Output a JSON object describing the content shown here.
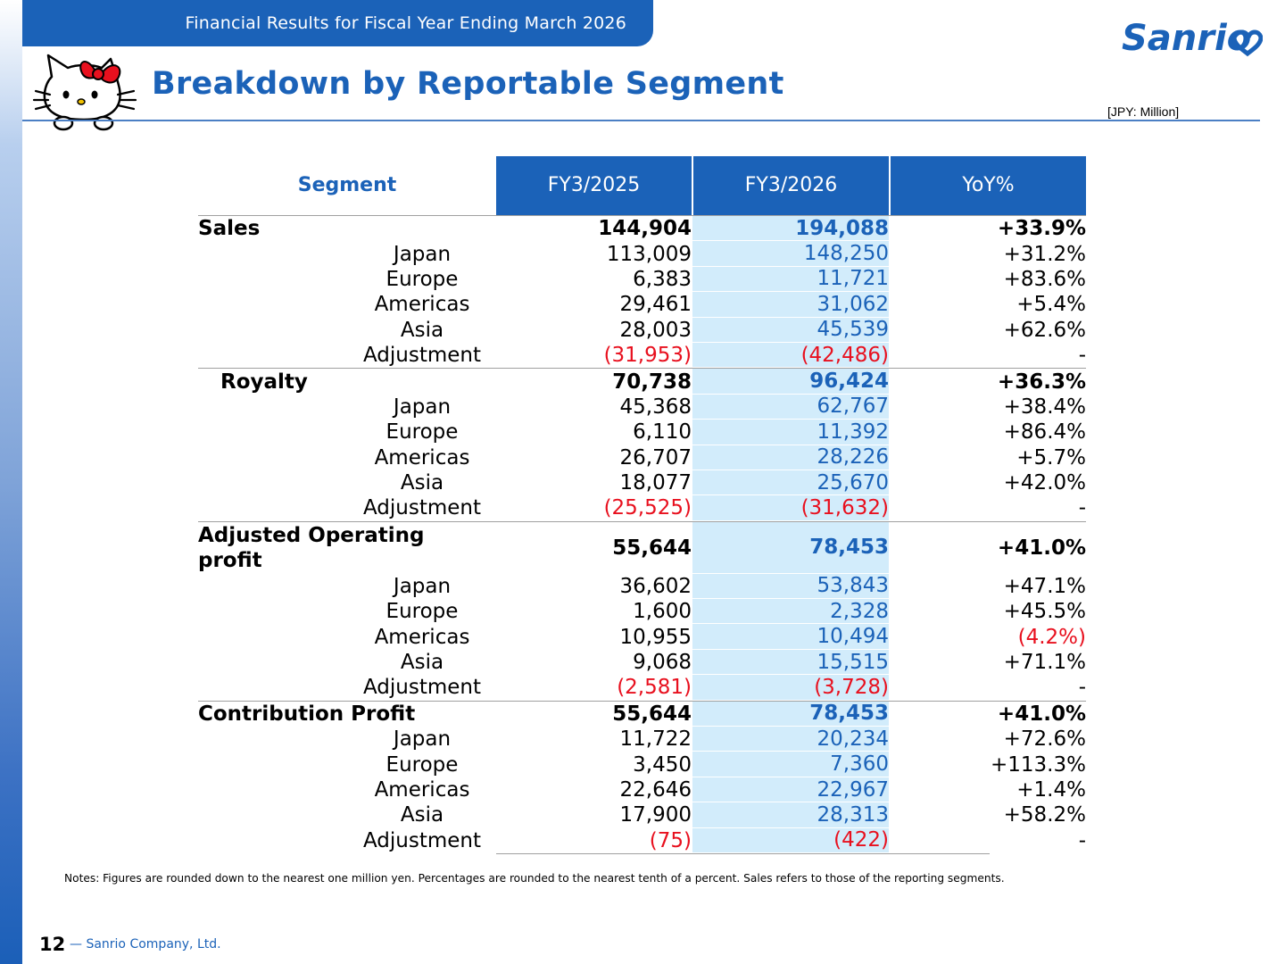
{
  "header": {
    "tab_title": "Financial Results for Fiscal Year Ending March 2026",
    "logo_text": "Sanrio",
    "page_title": "Breakdown by Reportable Segment",
    "unit": "[JPY: Million]"
  },
  "table": {
    "columns": [
      "Segment",
      "FY3/2025",
      "FY3/2026",
      "YoY%"
    ],
    "sections": [
      {
        "label": "Sales",
        "v1": "144,904",
        "v2": "194,088",
        "yoy": "+33.9%",
        "rows": [
          {
            "label": "Japan",
            "v1": "113,009",
            "v2": "148,250",
            "yoy": "+31.2%"
          },
          {
            "label": "Europe",
            "v1": "6,383",
            "v2": "11,721",
            "yoy": "+83.6%"
          },
          {
            "label": "Americas",
            "v1": "29,461",
            "v2": "31,062",
            "yoy": "+5.4%"
          },
          {
            "label": "Asia",
            "v1": "28,003",
            "v2": "45,539",
            "yoy": "+62.6%"
          },
          {
            "label": "Adjustment",
            "v1": "(31,953)",
            "v2": "(42,486)",
            "yoy": "-"
          }
        ]
      },
      {
        "label": "Royalty",
        "v1": "70,738",
        "v2": "96,424",
        "yoy": "+36.3%",
        "rows": [
          {
            "label": "Japan",
            "v1": "45,368",
            "v2": "62,767",
            "yoy": "+38.4%"
          },
          {
            "label": "Europe",
            "v1": "6,110",
            "v2": "11,392",
            "yoy": "+86.4%"
          },
          {
            "label": "Americas",
            "v1": "26,707",
            "v2": "28,226",
            "yoy": "+5.7%"
          },
          {
            "label": "Asia",
            "v1": "18,077",
            "v2": "25,670",
            "yoy": "+42.0%"
          },
          {
            "label": "Adjustment",
            "v1": "(25,525)",
            "v2": "(31,632)",
            "yoy": "-"
          }
        ]
      },
      {
        "label": "Adjusted Operating profit",
        "v1": "55,644",
        "v2": "78,453",
        "yoy": "+41.0%",
        "rows": [
          {
            "label": "Japan",
            "v1": "36,602",
            "v2": "53,843",
            "yoy": "+47.1%"
          },
          {
            "label": "Europe",
            "v1": "1,600",
            "v2": "2,328",
            "yoy": "+45.5%"
          },
          {
            "label": "Americas",
            "v1": "10,955",
            "v2": "10,494",
            "yoy": "(4.2%)"
          },
          {
            "label": "Asia",
            "v1": "9,068",
            "v2": "15,515",
            "yoy": "+71.1%"
          },
          {
            "label": "Adjustment",
            "v1": "(2,581)",
            "v2": "(3,728)",
            "yoy": "-"
          }
        ]
      },
      {
        "label": "Contribution Profit",
        "v1": "55,644",
        "v2": "78,453",
        "yoy": "+41.0%",
        "rows": [
          {
            "label": "Japan",
            "v1": "11,722",
            "v2": "20,234",
            "yoy": "+72.6%"
          },
          {
            "label": "Europe",
            "v1": "3,450",
            "v2": "7,360",
            "yoy": "+113.3%"
          },
          {
            "label": "Americas",
            "v1": "22,646",
            "v2": "22,967",
            "yoy": "+1.4%"
          },
          {
            "label": "Asia",
            "v1": "17,900",
            "v2": "28,313",
            "yoy": "+58.2%"
          },
          {
            "label": "Adjustment",
            "v1": "(75)",
            "v2": "(422)",
            "yoy": "-"
          }
        ]
      }
    ]
  },
  "notes": "Notes: Figures are rounded down to the nearest one million yen. Percentages are rounded to the nearest tenth of a percent. Sales refers to those of the reporting segments.",
  "footer": {
    "page_number": "12",
    "company": "— Sanrio Company, Ltd."
  },
  "colors": {
    "brand_blue": "#1b62b8",
    "highlight_column": "#d2ecfb",
    "negative_red": "#e8101e"
  }
}
